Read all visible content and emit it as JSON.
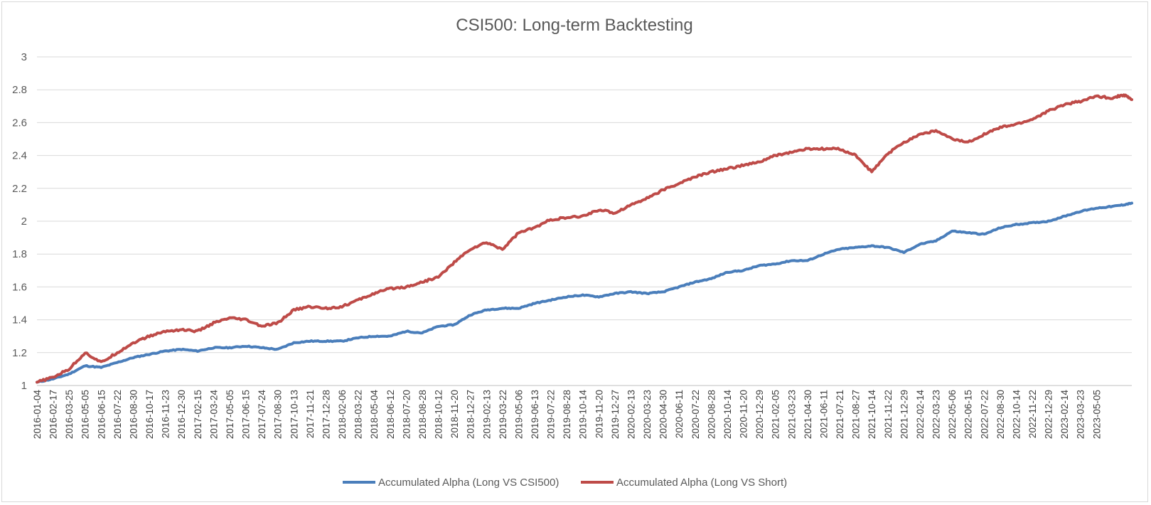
{
  "chart_data": {
    "type": "line",
    "title": "CSI500: Long-term Backtesting",
    "xlabel": "",
    "ylabel": "",
    "ylim": [
      1,
      3
    ],
    "yticks": [
      1,
      1.2,
      1.4,
      1.6,
      1.8,
      2,
      2.2,
      2.4,
      2.6,
      2.8,
      3
    ],
    "grid": true,
    "legend": "bottom",
    "x_tick_labels": [
      "2016-01-04",
      "2016-02-17",
      "2016-03-25",
      "2016-05-05",
      "2016-06-15",
      "2016-07-22",
      "2016-08-30",
      "2016-10-17",
      "2016-11-23",
      "2016-12-30",
      "2017-02-15",
      "2017-03-24",
      "2017-05-05",
      "2017-06-15",
      "2017-07-24",
      "2017-08-30",
      "2017-10-13",
      "2017-11-21",
      "2017-12-28",
      "2018-02-06",
      "2018-03-22",
      "2018-05-04",
      "2018-06-12",
      "2018-07-20",
      "2018-08-28",
      "2018-10-12",
      "2018-11-20",
      "2018-12-27",
      "2019-02-13",
      "2019-03-22",
      "2019-05-06",
      "2019-06-13",
      "2019-07-22",
      "2019-08-28",
      "2019-10-14",
      "2019-11-20",
      "2019-12-27",
      "2020-02-13",
      "2020-03-23",
      "2020-04-30",
      "2020-06-11",
      "2020-07-22",
      "2020-08-28",
      "2020-10-14",
      "2020-11-20",
      "2020-12-29",
      "2021-02-05",
      "2021-03-23",
      "2021-04-30",
      "2021-06-11",
      "2021-07-21",
      "2021-08-27",
      "2021-10-14",
      "2021-11-22",
      "2021-12-29",
      "2022-02-14",
      "2022-03-23",
      "2022-05-06",
      "2022-06-15",
      "2022-07-22",
      "2022-08-30",
      "2022-10-14",
      "2022-11-22",
      "2022-12-29",
      "2023-02-14",
      "2023-03-23",
      "2023-05-05"
    ],
    "x_end_index": 68.2,
    "series": [
      {
        "name": "Accumulated Alpha (Long VS CSI500)",
        "color": "#4a7ebb",
        "points": [
          [
            0,
            1.02
          ],
          [
            1,
            1.04
          ],
          [
            2,
            1.07
          ],
          [
            3,
            1.12
          ],
          [
            4,
            1.11
          ],
          [
            5,
            1.14
          ],
          [
            6,
            1.17
          ],
          [
            7,
            1.19
          ],
          [
            8,
            1.21
          ],
          [
            9,
            1.22
          ],
          [
            10,
            1.21
          ],
          [
            11,
            1.23
          ],
          [
            12,
            1.23
          ],
          [
            13,
            1.24
          ],
          [
            14,
            1.23
          ],
          [
            15,
            1.22
          ],
          [
            16,
            1.26
          ],
          [
            17,
            1.27
          ],
          [
            18,
            1.27
          ],
          [
            19,
            1.27
          ],
          [
            20,
            1.29
          ],
          [
            21,
            1.3
          ],
          [
            22,
            1.3
          ],
          [
            23,
            1.33
          ],
          [
            24,
            1.32
          ],
          [
            25,
            1.36
          ],
          [
            26,
            1.37
          ],
          [
            27,
            1.43
          ],
          [
            28,
            1.46
          ],
          [
            29,
            1.47
          ],
          [
            30,
            1.47
          ],
          [
            31,
            1.5
          ],
          [
            32,
            1.52
          ],
          [
            33,
            1.54
          ],
          [
            34,
            1.55
          ],
          [
            35,
            1.54
          ],
          [
            36,
            1.56
          ],
          [
            37,
            1.57
          ],
          [
            38,
            1.56
          ],
          [
            39,
            1.57
          ],
          [
            40,
            1.6
          ],
          [
            41,
            1.63
          ],
          [
            42,
            1.65
          ],
          [
            43,
            1.69
          ],
          [
            44,
            1.7
          ],
          [
            45,
            1.73
          ],
          [
            46,
            1.74
          ],
          [
            47,
            1.76
          ],
          [
            48,
            1.76
          ],
          [
            49,
            1.8
          ],
          [
            50,
            1.83
          ],
          [
            51,
            1.84
          ],
          [
            52,
            1.85
          ],
          [
            53,
            1.84
          ],
          [
            54,
            1.81
          ],
          [
            55,
            1.86
          ],
          [
            56,
            1.88
          ],
          [
            57,
            1.94
          ],
          [
            58,
            1.93
          ],
          [
            59,
            1.92
          ],
          [
            60,
            1.96
          ],
          [
            61,
            1.98
          ],
          [
            62,
            1.99
          ],
          [
            63,
            2
          ],
          [
            64,
            2.03
          ],
          [
            65,
            2.06
          ],
          [
            66,
            2.08
          ],
          [
            67,
            2.09
          ],
          [
            67.7,
            2.1
          ],
          [
            68.2,
            2.11
          ]
        ]
      },
      {
        "name": "Accumulated Alpha (Long VS Short)",
        "color": "#be4b48",
        "points": [
          [
            0,
            1.02
          ],
          [
            1,
            1.05
          ],
          [
            2,
            1.1
          ],
          [
            3,
            1.2
          ],
          [
            4,
            1.14
          ],
          [
            5,
            1.2
          ],
          [
            6,
            1.26
          ],
          [
            7,
            1.3
          ],
          [
            8,
            1.33
          ],
          [
            9,
            1.34
          ],
          [
            10,
            1.33
          ],
          [
            11,
            1.38
          ],
          [
            12,
            1.41
          ],
          [
            13,
            1.4
          ],
          [
            14,
            1.36
          ],
          [
            15,
            1.38
          ],
          [
            16,
            1.46
          ],
          [
            17,
            1.48
          ],
          [
            18,
            1.47
          ],
          [
            19,
            1.48
          ],
          [
            20,
            1.52
          ],
          [
            21,
            1.56
          ],
          [
            22,
            1.59
          ],
          [
            23,
            1.6
          ],
          [
            24,
            1.63
          ],
          [
            25,
            1.66
          ],
          [
            26,
            1.75
          ],
          [
            27,
            1.83
          ],
          [
            28,
            1.87
          ],
          [
            29,
            1.83
          ],
          [
            30,
            1.93
          ],
          [
            31,
            1.96
          ],
          [
            32,
            2.01
          ],
          [
            33,
            2.02
          ],
          [
            34,
            2.03
          ],
          [
            35,
            2.07
          ],
          [
            36,
            2.05
          ],
          [
            37,
            2.1
          ],
          [
            38,
            2.14
          ],
          [
            39,
            2.19
          ],
          [
            40,
            2.23
          ],
          [
            41,
            2.27
          ],
          [
            42,
            2.3
          ],
          [
            43,
            2.32
          ],
          [
            44,
            2.34
          ],
          [
            45,
            2.36
          ],
          [
            46,
            2.4
          ],
          [
            47,
            2.42
          ],
          [
            48,
            2.44
          ],
          [
            49,
            2.44
          ],
          [
            50,
            2.44
          ],
          [
            51,
            2.4
          ],
          [
            52,
            2.3
          ],
          [
            53,
            2.41
          ],
          [
            54,
            2.48
          ],
          [
            55,
            2.53
          ],
          [
            56,
            2.55
          ],
          [
            57,
            2.5
          ],
          [
            58,
            2.48
          ],
          [
            59,
            2.53
          ],
          [
            60,
            2.57
          ],
          [
            61,
            2.59
          ],
          [
            62,
            2.62
          ],
          [
            63,
            2.67
          ],
          [
            64,
            2.71
          ],
          [
            65,
            2.73
          ],
          [
            66,
            2.76
          ],
          [
            67,
            2.75
          ],
          [
            67.7,
            2.77
          ],
          [
            68.2,
            2.74
          ]
        ]
      }
    ]
  }
}
